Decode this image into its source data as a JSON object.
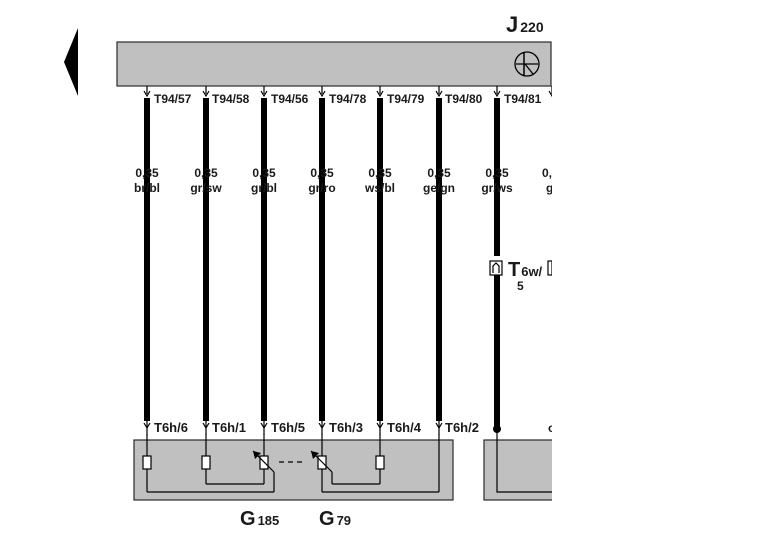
{
  "diagram": {
    "component_j": {
      "letter": "J",
      "number": "220"
    },
    "top_pins": [
      "T94/57",
      "T94/58",
      "T94/56",
      "T94/78",
      "T94/79",
      "T94/80",
      "T94/81"
    ],
    "wires": [
      {
        "size": "0,35",
        "color": "br/bl"
      },
      {
        "size": "0,35",
        "color": "gr/sw"
      },
      {
        "size": "0,35",
        "color": "gr/bl"
      },
      {
        "size": "0,35",
        "color": "gr/ro"
      },
      {
        "size": "0,35",
        "color": "ws/bl"
      },
      {
        "size": "0,35",
        "color": "ge/gn"
      },
      {
        "size": "0,35",
        "color": "gr/ws"
      }
    ],
    "partial_wire": {
      "size": "0,",
      "color": "g"
    },
    "bottom_pins": [
      "T6h/6",
      "T6h/1",
      "T6h/5",
      "T6h/3",
      "T6h/4",
      "T6h/2"
    ],
    "connector": {
      "letter": "T",
      "code": "6w/",
      "pin": "5"
    },
    "sensor_left": {
      "letter": "G",
      "number": "185"
    },
    "sensor_right": {
      "letter": "G",
      "number": "79"
    },
    "colors": {
      "wire": "#000000",
      "box_fill": "#c0c0c0",
      "box_stroke": "#2a2a2a"
    }
  }
}
